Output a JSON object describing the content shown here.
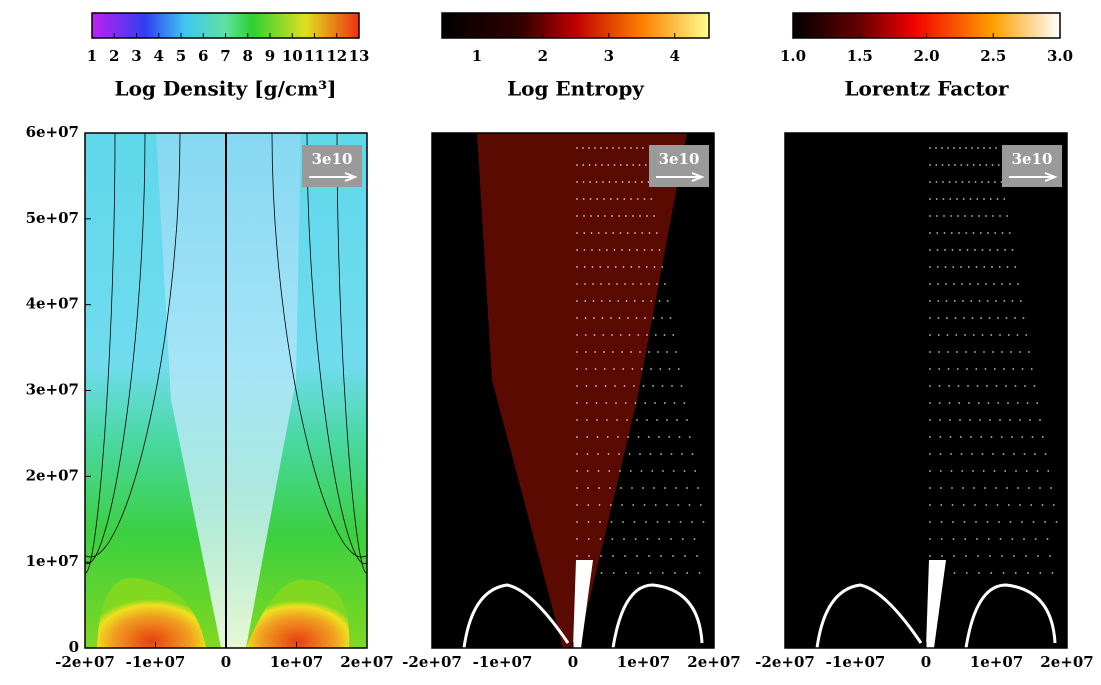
{
  "yaxis": {
    "lim": [
      0,
      60000000
    ],
    "ticks": [
      {
        "value": 0,
        "label": "0"
      },
      {
        "value": 10000000,
        "label": "1e+07"
      },
      {
        "value": 20000000,
        "label": "2e+07"
      },
      {
        "value": 30000000,
        "label": "3e+07"
      },
      {
        "value": 40000000,
        "label": "4e+07"
      },
      {
        "value": 50000000,
        "label": "5e+07"
      },
      {
        "value": 60000000,
        "label": "6e+07"
      }
    ]
  },
  "panels": [
    {
      "colorbar": {
        "label": "Log Density [g/cm³]",
        "lim": [
          1,
          13
        ],
        "ticks": [
          1,
          2,
          3,
          4,
          5,
          6,
          7,
          8,
          9,
          10,
          11,
          12,
          13
        ]
      },
      "xlim": [
        -20000000,
        20000000
      ],
      "xticks": [
        {
          "value": -20000000,
          "label": "-2e+07"
        },
        {
          "value": -10000000,
          "label": "-1e+07"
        },
        {
          "value": 0,
          "label": "0"
        },
        {
          "value": 10000000,
          "label": "1e+07"
        },
        {
          "value": 20000000,
          "label": "2e+07"
        }
      ],
      "arrow_label": "3e10"
    },
    {
      "colorbar": {
        "label": "Log Entropy",
        "lim": [
          0.47,
          4.52
        ],
        "ticks": [
          1,
          2,
          3,
          4
        ]
      },
      "xlim": [
        -20000000,
        20000000
      ],
      "xticks": [
        {
          "value": -20000000,
          "label": "-2e+07"
        },
        {
          "value": -10000000,
          "label": "-1e+07"
        },
        {
          "value": 0,
          "label": "0"
        },
        {
          "value": 10000000,
          "label": "1e+07"
        },
        {
          "value": 20000000,
          "label": "2e+07"
        }
      ],
      "arrow_label": "3e10"
    },
    {
      "colorbar": {
        "label": "Lorentz Factor",
        "lim": [
          1,
          3
        ],
        "ticks": [
          {
            "value": 1,
            "label": "1.0"
          },
          {
            "value": 1.5,
            "label": "1.5"
          },
          {
            "value": 2,
            "label": "2.0"
          },
          {
            "value": 2.5,
            "label": "2.5"
          },
          {
            "value": 3,
            "label": "3.0"
          }
        ]
      },
      "xlim": [
        -20000000,
        20000000
      ],
      "xticks": [
        {
          "value": -20000000,
          "label": "-2e+07"
        },
        {
          "value": -10000000,
          "label": "-1e+07"
        },
        {
          "value": 0,
          "label": "0"
        },
        {
          "value": 10000000,
          "label": "1e+07"
        },
        {
          "value": 20000000,
          "label": "2e+07"
        }
      ],
      "arrow_label": "3e10"
    }
  ]
}
